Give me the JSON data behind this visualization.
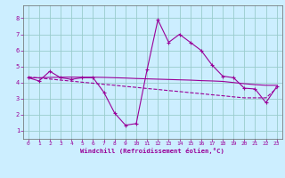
{
  "x": [
    0,
    1,
    2,
    3,
    4,
    5,
    6,
    7,
    8,
    9,
    10,
    11,
    12,
    13,
    14,
    15,
    16,
    17,
    18,
    19,
    20,
    21,
    22,
    23
  ],
  "y_main": [
    4.3,
    4.1,
    4.7,
    4.3,
    4.2,
    4.3,
    4.3,
    3.4,
    2.1,
    1.35,
    1.45,
    4.8,
    7.9,
    6.5,
    7.0,
    6.5,
    6.0,
    5.1,
    4.4,
    4.3,
    3.65,
    3.6,
    2.75,
    3.75
  ],
  "y_linear": [
    4.35,
    4.28,
    4.22,
    4.15,
    4.09,
    4.02,
    3.96,
    3.89,
    3.83,
    3.76,
    3.7,
    3.63,
    3.57,
    3.5,
    3.44,
    3.37,
    3.31,
    3.24,
    3.18,
    3.11,
    3.05,
    3.05,
    3.05,
    3.65
  ],
  "y_smooth": [
    4.3,
    4.3,
    4.32,
    4.33,
    4.34,
    4.33,
    4.33,
    4.32,
    4.3,
    4.28,
    4.25,
    4.23,
    4.21,
    4.19,
    4.17,
    4.15,
    4.12,
    4.1,
    4.07,
    4.0,
    3.93,
    3.87,
    3.83,
    3.83
  ],
  "line_color": "#990099",
  "bg_color": "#cceeff",
  "grid_color": "#99cccc",
  "xlabel": "Windchill (Refroidissement éolien,°C)",
  "ylim": [
    0.5,
    8.8
  ],
  "xlim": [
    -0.5,
    23.5
  ],
  "yticks": [
    1,
    2,
    3,
    4,
    5,
    6,
    7,
    8
  ],
  "xticks": [
    0,
    1,
    2,
    3,
    4,
    5,
    6,
    7,
    8,
    9,
    10,
    11,
    12,
    13,
    14,
    15,
    16,
    17,
    18,
    19,
    20,
    21,
    22,
    23
  ]
}
